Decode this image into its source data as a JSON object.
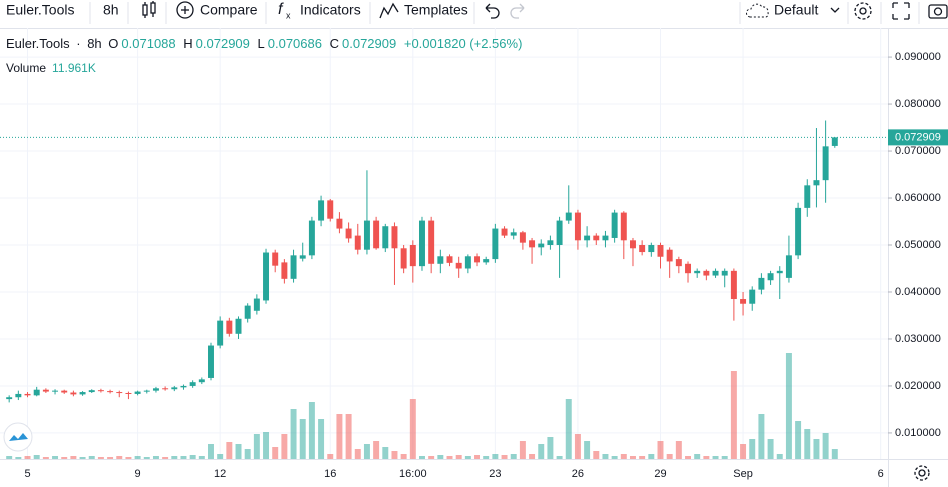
{
  "toolbar": {
    "symbol": "Euler.Tools",
    "interval": "8h",
    "compare": "Compare",
    "indicators": "Indicators",
    "templates": "Templates",
    "layout": "Default"
  },
  "chart_data": {
    "type": "candlestick",
    "symbol": "Euler.Tools",
    "interval": "8h",
    "ohlc_letters": {
      "open": "O",
      "high": "H",
      "low": "L",
      "close": "C"
    },
    "change": "+0.001820 (+2.56%)",
    "up_color": "#26a69a",
    "down_color": "#ef5350",
    "open": [
      0.0172,
      0.0176,
      0.0183,
      0.018,
      0.0192,
      0.0188,
      0.019,
      0.0186,
      0.0182,
      0.0187,
      0.0191,
      0.0189,
      0.0187,
      0.0185,
      0.0183,
      0.0188,
      0.019,
      0.0195,
      0.0193,
      0.0197,
      0.02,
      0.0208,
      0.0217,
      0.0286,
      0.0339,
      0.0311,
      0.0343,
      0.036,
      0.0382,
      0.0484,
      0.0463,
      0.0428,
      0.0471,
      0.0478,
      0.0552,
      0.0595,
      0.0556,
      0.0535,
      0.052,
      0.049,
      0.0552,
      0.0493,
      0.054,
      0.0493,
      0.05,
      0.0455,
      0.0552,
      0.046,
      0.0476,
      0.0462,
      0.045,
      0.0476,
      0.0463,
      0.047,
      0.0535,
      0.052,
      0.0527,
      0.051,
      0.0495,
      0.05,
      0.05,
      0.0552,
      0.0569,
      0.051,
      0.052,
      0.051,
      0.0515,
      0.0569,
      0.051,
      0.05,
      0.0485,
      0.05,
      0.049,
      0.047,
      0.046,
      0.044,
      0.0445,
      0.0435,
      0.0435,
      0.0445,
      0.0385,
      0.0375,
      0.0405,
      0.0425,
      0.044,
      0.043,
      0.0478,
      0.0579,
      0.0627,
      0.0638,
      0.071088
    ],
    "high": [
      0.018,
      0.019,
      0.0187,
      0.0198,
      0.0195,
      0.0193,
      0.0192,
      0.019,
      0.0189,
      0.0193,
      0.0194,
      0.0192,
      0.019,
      0.0188,
      0.019,
      0.0192,
      0.0198,
      0.0199,
      0.02,
      0.0203,
      0.0212,
      0.0218,
      0.0292,
      0.0348,
      0.0345,
      0.0348,
      0.0376,
      0.0395,
      0.0492,
      0.049,
      0.047,
      0.049,
      0.0505,
      0.056,
      0.0605,
      0.0598,
      0.057,
      0.0548,
      0.0545,
      0.0659,
      0.056,
      0.0545,
      0.0548,
      0.05,
      0.051,
      0.056,
      0.056,
      0.049,
      0.048,
      0.0475,
      0.048,
      0.0482,
      0.0475,
      0.0545,
      0.054,
      0.0535,
      0.053,
      0.0515,
      0.0512,
      0.052,
      0.056,
      0.0627,
      0.0575,
      0.054,
      0.0525,
      0.053,
      0.0575,
      0.0572,
      0.0515,
      0.051,
      0.0505,
      0.0505,
      0.0495,
      0.0475,
      0.0465,
      0.045,
      0.0448,
      0.045,
      0.045,
      0.045,
      0.04,
      0.0412,
      0.044,
      0.0445,
      0.0455,
      0.052,
      0.059,
      0.064,
      0.0749,
      0.0765,
      0.072909
    ],
    "low": [
      0.0165,
      0.017,
      0.0176,
      0.0178,
      0.0185,
      0.0182,
      0.0183,
      0.0178,
      0.0179,
      0.0185,
      0.0186,
      0.0184,
      0.0176,
      0.0172,
      0.018,
      0.0184,
      0.0186,
      0.019,
      0.0189,
      0.0192,
      0.0196,
      0.0204,
      0.0212,
      0.028,
      0.0305,
      0.03,
      0.0335,
      0.0352,
      0.0375,
      0.0442,
      0.0418,
      0.042,
      0.0465,
      0.047,
      0.054,
      0.055,
      0.0525,
      0.0505,
      0.048,
      0.048,
      0.049,
      0.0485,
      0.0415,
      0.044,
      0.042,
      0.0445,
      0.044,
      0.044,
      0.0455,
      0.043,
      0.044,
      0.0455,
      0.0458,
      0.0462,
      0.0515,
      0.0512,
      0.049,
      0.046,
      0.0478,
      0.049,
      0.043,
      0.0545,
      0.049,
      0.0495,
      0.05,
      0.0495,
      0.0505,
      0.047,
      0.0455,
      0.0478,
      0.0475,
      0.045,
      0.043,
      0.044,
      0.042,
      0.043,
      0.0425,
      0.043,
      0.041,
      0.0339,
      0.035,
      0.036,
      0.0395,
      0.0415,
      0.0385,
      0.042,
      0.047,
      0.056,
      0.058,
      0.059,
      0.070686
    ],
    "close": [
      0.0176,
      0.0183,
      0.018,
      0.0192,
      0.0188,
      0.019,
      0.0186,
      0.0182,
      0.0187,
      0.0191,
      0.0189,
      0.0187,
      0.0185,
      0.0183,
      0.0188,
      0.019,
      0.0195,
      0.0193,
      0.0197,
      0.02,
      0.0208,
      0.0214,
      0.0286,
      0.0339,
      0.0311,
      0.0343,
      0.0371,
      0.0386,
      0.0484,
      0.0456,
      0.0428,
      0.0478,
      0.0478,
      0.0552,
      0.0595,
      0.0556,
      0.0535,
      0.0514,
      0.049,
      0.0552,
      0.0493,
      0.054,
      0.0493,
      0.045,
      0.0455,
      0.0552,
      0.046,
      0.0476,
      0.0462,
      0.045,
      0.0476,
      0.0463,
      0.047,
      0.0535,
      0.052,
      0.0527,
      0.0505,
      0.0495,
      0.0503,
      0.051,
      0.0552,
      0.0569,
      0.051,
      0.052,
      0.051,
      0.052,
      0.0569,
      0.051,
      0.0493,
      0.0485,
      0.05,
      0.0475,
      0.0465,
      0.0455,
      0.044,
      0.0445,
      0.0435,
      0.0445,
      0.0445,
      0.0385,
      0.0375,
      0.0405,
      0.043,
      0.044,
      0.0445,
      0.0478,
      0.0579,
      0.0627,
      0.0638,
      0.071,
      0.072909
    ],
    "volume": {
      "name": "Volume",
      "last_label": "11.961K",
      "values": [
        3600,
        2400,
        3600,
        4800,
        2400,
        3600,
        2400,
        3600,
        2400,
        3600,
        2400,
        2400,
        3600,
        2400,
        3600,
        2400,
        3600,
        2400,
        3600,
        3600,
        4800,
        3600,
        18000,
        6000,
        20400,
        18000,
        12000,
        30000,
        32400,
        14400,
        30000,
        60000,
        48000,
        68400,
        48000,
        6000,
        54000,
        54000,
        12000,
        18000,
        21600,
        14400,
        9600,
        6000,
        72000,
        3600,
        3600,
        4800,
        3600,
        4800,
        3600,
        4800,
        3600,
        6000,
        4800,
        6000,
        21600,
        6000,
        18000,
        26400,
        3600,
        72000,
        30000,
        21600,
        9600,
        6000,
        3600,
        6000,
        3600,
        3600,
        6000,
        21600,
        6000,
        21600,
        3600,
        6000,
        3600,
        3600,
        3600,
        105600,
        18000,
        24000,
        54000,
        24000,
        6000,
        127200,
        45600,
        36000,
        24000,
        31200,
        11961
      ]
    },
    "xlim": [
      -1,
      95.8
    ],
    "xticks": [
      {
        "value": 2,
        "label": "5"
      },
      {
        "value": 14,
        "label": "9"
      },
      {
        "value": 23,
        "label": "12"
      },
      {
        "value": 35,
        "label": "16"
      },
      {
        "value": 44,
        "label": "16:00"
      },
      {
        "value": 53,
        "label": "23"
      },
      {
        "value": 62,
        "label": "26"
      },
      {
        "value": 71,
        "label": "29"
      },
      {
        "value": 80,
        "label": "Sep"
      },
      {
        "value": 95,
        "label": "6"
      }
    ],
    "ylim": [
      0.00445,
      0.09619
    ],
    "yticks": [
      {
        "value": 0.01,
        "label": "0.010000"
      },
      {
        "value": 0.02,
        "label": "0.020000"
      },
      {
        "value": 0.03,
        "label": "0.030000"
      },
      {
        "value": 0.04,
        "label": "0.040000"
      },
      {
        "value": 0.05,
        "label": "0.050000"
      },
      {
        "value": 0.06,
        "label": "0.060000"
      },
      {
        "value": 0.07,
        "label": "0.070000"
      },
      {
        "value": 0.08,
        "label": "0.080000"
      },
      {
        "value": 0.09,
        "label": "0.090000"
      }
    ],
    "grid": true
  }
}
